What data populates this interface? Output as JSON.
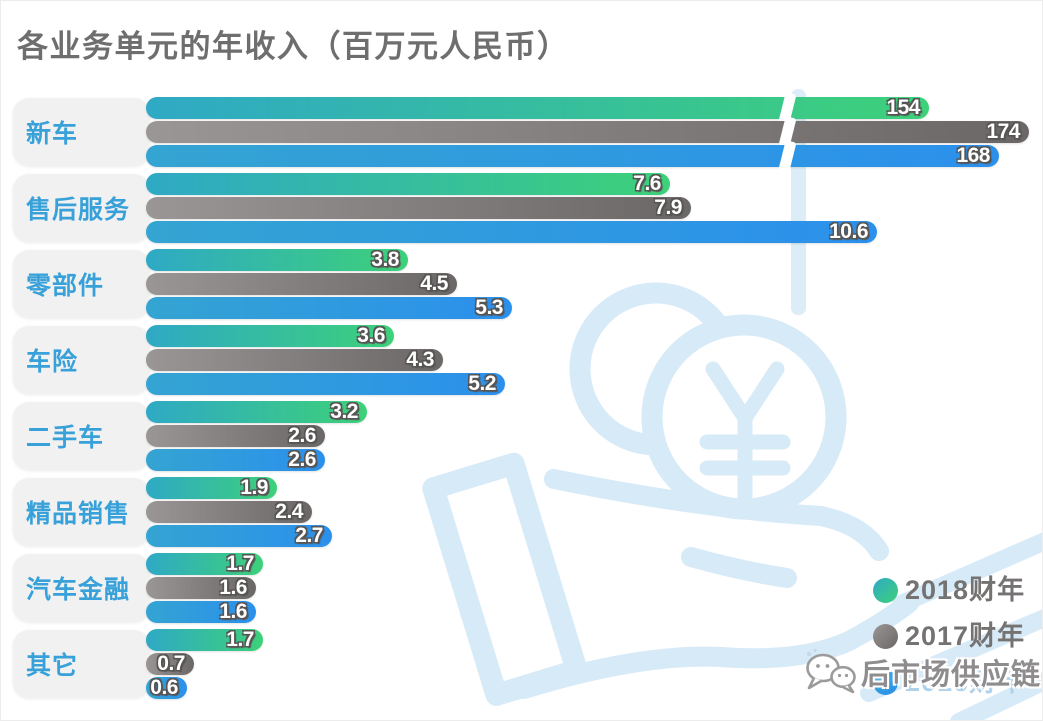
{
  "page": {
    "title": "各业务单元的年收入（百万元人民币）"
  },
  "chart_data": {
    "type": "bar",
    "orientation": "horizontal",
    "title": "各业务单元的年收入（百万元人民币）",
    "value_unit": "百万元人民币",
    "categories": [
      "新车",
      "售后服务",
      "零部件",
      "车险",
      "二手车",
      "精品销售",
      "汽车金融",
      "其它"
    ],
    "series": [
      {
        "name": "2018财年",
        "values": [
          154,
          7.6,
          3.8,
          3.6,
          3.2,
          1.9,
          1.7,
          1.7
        ],
        "color_start": "#2FA9C5",
        "color_end": "#3DD179",
        "legend_text_color": "#757272"
      },
      {
        "name": "2017财年",
        "values": [
          174,
          7.9,
          4.5,
          4.3,
          2.6,
          2.4,
          1.6,
          0.7
        ],
        "color_start": "#9A9696",
        "color_end": "#6B6767",
        "legend_text_color": "#757272"
      },
      {
        "name": "2016财年",
        "values": [
          168,
          10.6,
          5.3,
          5.2,
          2.6,
          2.7,
          1.6,
          0.6
        ],
        "color_start": "#34A4D2",
        "color_end": "#2B90EC",
        "legend_text_color": "#AFD2EA"
      }
    ],
    "axis_break": {
      "category": "新车",
      "note": "长条在此处以白色斜口截断"
    },
    "legend_position": "bottom-right",
    "category_label_color": "#38A1D9",
    "value_label_color": "#FFFFFF",
    "grid": false
  },
  "watermark": {
    "text": "后市场供应链",
    "icon": "wechat-icon"
  },
  "background": {
    "illustration": "hand-holding-coins-yuan",
    "color": "#D7EAF7"
  }
}
